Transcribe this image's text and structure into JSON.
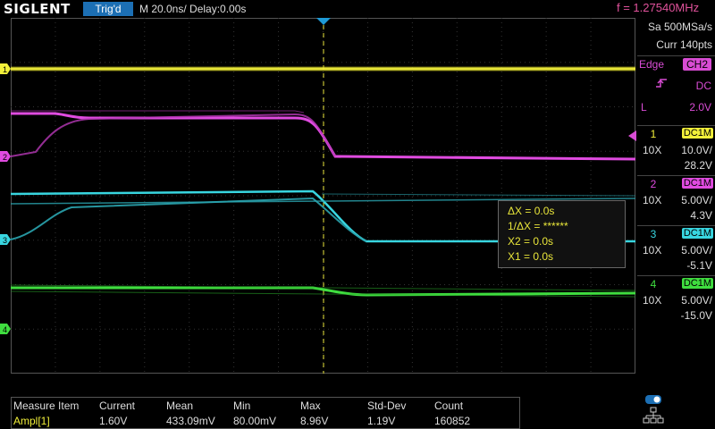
{
  "topbar": {
    "logo": "SIGLENT",
    "trigger_status": "Trig'd",
    "timebase": "M 20.0ns/  Delay:0.00s",
    "frequency": "f = 1.27540MHz"
  },
  "acquisition": {
    "sample_rate": "Sa 500MSa/s",
    "memory": "Curr 140pts"
  },
  "trigger": {
    "type": "Edge",
    "source": "CH2",
    "coupling": "DC",
    "level_label": "L",
    "level": "2.0V",
    "slope_icon": "rising-edge-icon"
  },
  "channels": [
    {
      "num": "1",
      "coupling": "DC1M",
      "probe": "10X",
      "scale": "10.0V/",
      "offset": "28.2V",
      "color": "#f2f03a"
    },
    {
      "num": "2",
      "coupling": "DC1M",
      "probe": "10X",
      "scale": "5.00V/",
      "offset": "4.3V",
      "color": "#e04be0"
    },
    {
      "num": "3",
      "coupling": "DC1M",
      "probe": "10X",
      "scale": "5.00V/",
      "offset": "-5.1V",
      "color": "#38d6e0"
    },
    {
      "num": "4",
      "coupling": "DC1M",
      "probe": "10X",
      "scale": "5.00V/",
      "offset": "-15.0V",
      "color": "#3fdd3f"
    }
  ],
  "channel_markers": [
    "1",
    "2",
    "3",
    "4"
  ],
  "cursors": {
    "delta_x": "ΔX = 0.0s",
    "inv_delta_x": "1/ΔX = ******",
    "x2": "X2 = 0.0s",
    "x1": "X1 = 0.0s"
  },
  "measure": {
    "headers": [
      "Measure Item",
      "Current",
      "Mean",
      "Min",
      "Max",
      "Std-Dev",
      "Count"
    ],
    "row": [
      "Ampl[1]",
      "1.60V",
      "433.09mV",
      "80.00mV",
      "8.96V",
      "1.19V",
      "160852"
    ]
  },
  "colors": {
    "grid": "#555555",
    "trigger_marker": "#1e9ad6",
    "cursor_line": "#e8e53a"
  }
}
